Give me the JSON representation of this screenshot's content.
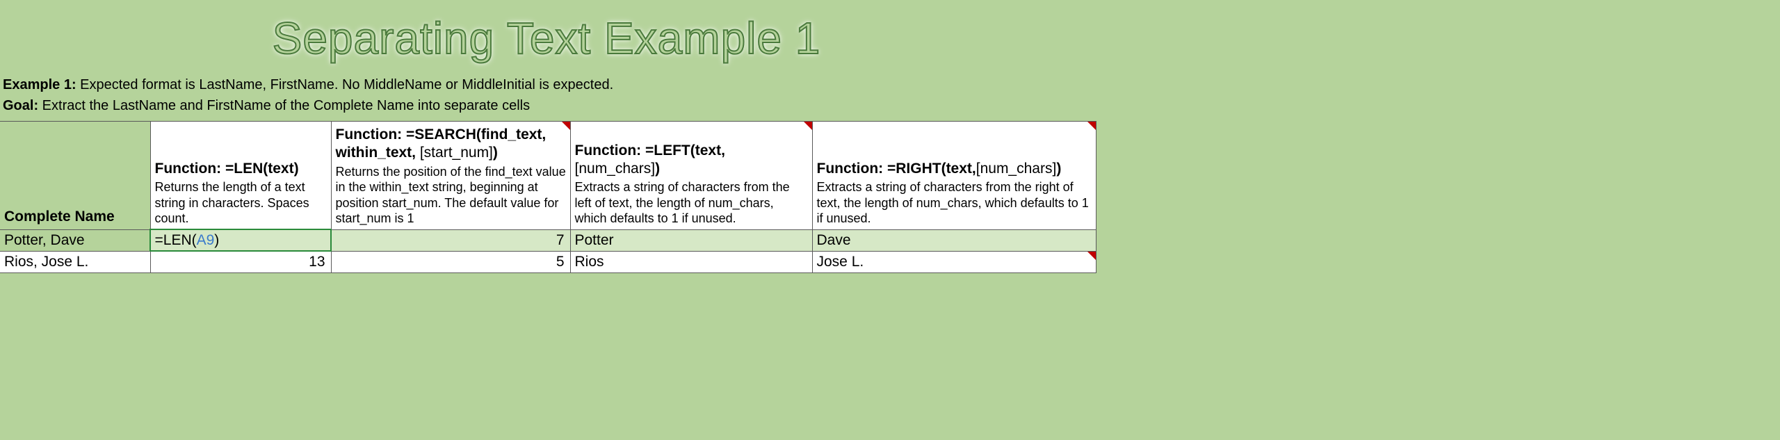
{
  "title": "Separating Text Example 1",
  "intro": {
    "example_label": "Example 1:",
    "example_text": " Expected format is LastName, FirstName. No MiddleName or MiddleInitial is expected.",
    "goal_label": "Goal:",
    "goal_text": " Extract the LastName and FirstName of the Complete Name into separate cells"
  },
  "columns": {
    "name_header": "Complete Name",
    "len": {
      "title_prefix": "Function:   ",
      "title_func": "=LEN(text)",
      "desc": "Returns the length of a text string in characters. Spaces count."
    },
    "search": {
      "title_prefix": "Function:   ",
      "title_func": "=SEARCH(find_text, within_text,",
      "title_optional": " [start_num]",
      "title_close": ")",
      "desc": "Returns the position of the find_text value in the within_text string, beginning at position start_num. The default value for start_num is 1"
    },
    "left": {
      "title_prefix": "Function:  ",
      "title_func": "=LEFT(text,",
      "title_optional": "[num_chars]",
      "title_close": ")",
      "desc": "Extracts a string of characters from the left of text, the length of num_chars, which defaults to 1 if unused."
    },
    "right": {
      "title_prefix": "Function:  ",
      "title_func": "=RIGHT(text,",
      "title_optional": "[num_chars]",
      "title_close": ")",
      "desc": "Extracts a string of characters from the right of text, the length of num_chars, which defaults to 1 if unused."
    }
  },
  "rows": [
    {
      "name": "Potter, Dave",
      "len_formula_prefix": "=LEN(",
      "len_formula_ref": "A9",
      "len_formula_suffix": ")",
      "search": "7",
      "left": "Potter",
      "right": "Dave"
    },
    {
      "name": "Rios, Jose L.",
      "len": "13",
      "search": "5",
      "left": "Rios",
      "right": "Jose L."
    }
  ],
  "styling": {
    "bg_color": "#b5d39b",
    "highlight_color": "#d6e8c6",
    "title_stroke": "#4a7a3c",
    "border_color": "#5a5a5a",
    "cellref_color": "#3a7acc",
    "marker_color": "#c00000"
  }
}
